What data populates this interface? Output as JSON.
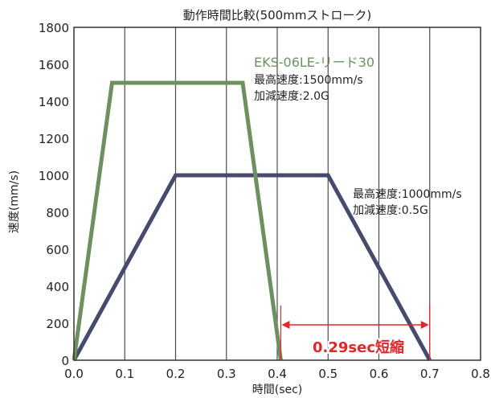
{
  "chart_data": {
    "type": "line",
    "title": "動作時間比較(500mmストローク)",
    "xlabel": "時間(sec)",
    "ylabel": "速度(mm/s)",
    "xlim": [
      0,
      0.8
    ],
    "ylim": [
      0,
      1800
    ],
    "x_ticks": [
      "0.0",
      "0.1",
      "0.2",
      "0.3",
      "0.4",
      "0.5",
      "0.6",
      "0.7",
      "0.8"
    ],
    "y_ticks": [
      "0",
      "200",
      "400",
      "600",
      "800",
      "1000",
      "1200",
      "1400",
      "1600",
      "1800"
    ],
    "grid": "vertical",
    "series": [
      {
        "name": "EKS-06LE-リード30",
        "color": "#6e9061",
        "x": [
          0.0,
          0.075,
          0.332,
          0.407
        ],
        "y": [
          0,
          1500,
          1500,
          0
        ]
      },
      {
        "color": "#464b6e",
        "x": [
          0.0,
          0.2,
          0.5,
          0.7
        ],
        "y": [
          0,
          1000,
          1000,
          0
        ]
      }
    ],
    "annotations": {
      "green_speed": "最高速度:1500mm/s",
      "green_accel": "加減速度:2.0G",
      "blue_speed": "最高速度:1000mm/s",
      "blue_accel": "加減速度:0.5G",
      "reduction": "0.29sec短縮",
      "reduction_color": "#e2262a",
      "reduction_from": 0.407,
      "reduction_to": 0.7
    }
  }
}
